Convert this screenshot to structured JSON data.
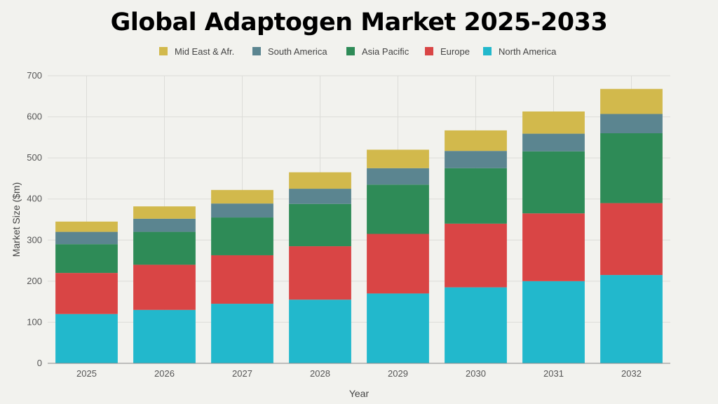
{
  "chart_data": {
    "type": "bar",
    "stacked": true,
    "title": "Global Adaptogen Market 2025-2033",
    "xlabel": "Year",
    "ylabel": "Market Size ($m)",
    "ylim": [
      0,
      700
    ],
    "yticks": [
      0,
      100,
      200,
      300,
      400,
      500,
      600,
      700
    ],
    "grid": true,
    "legend_position": "top",
    "categories": [
      "2025",
      "2026",
      "2027",
      "2028",
      "2029",
      "2030",
      "2031",
      "2032"
    ],
    "series": [
      {
        "name": "North America",
        "color": "#22b8cc",
        "values": [
          120,
          130,
          145,
          155,
          170,
          185,
          200,
          215
        ]
      },
      {
        "name": "Europe",
        "color": "#d94545",
        "values": [
          100,
          110,
          118,
          130,
          145,
          155,
          165,
          175
        ]
      },
      {
        "name": "Asia Pacific",
        "color": "#2e8b57",
        "values": [
          70,
          80,
          92,
          103,
          120,
          135,
          151,
          170
        ]
      },
      {
        "name": "South America",
        "color": "#5b8590",
        "values": [
          30,
          32,
          34,
          37,
          40,
          42,
          43,
          47
        ]
      },
      {
        "name": "Mid East & Afr.",
        "color": "#d2b94c",
        "values": [
          25,
          30,
          33,
          40,
          45,
          50,
          54,
          61
        ]
      }
    ],
    "legend_order": [
      "Mid East & Afr.",
      "South America",
      "Asia Pacific",
      "Europe",
      "North America"
    ]
  }
}
